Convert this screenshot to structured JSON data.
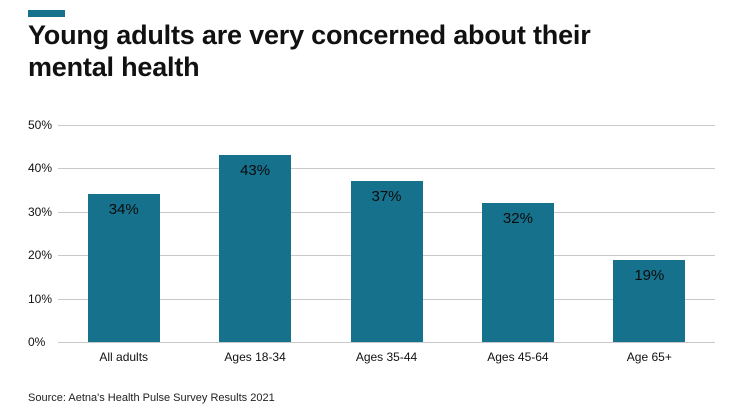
{
  "header": {
    "title": "Young adults are very concerned about their mental health"
  },
  "footer": {
    "source": "Source: Aetna's Health Pulse Survey Results 2021"
  },
  "colors": {
    "bar": "#15718c",
    "accent": "#15718c",
    "gridline": "#c9c9c9"
  },
  "chart_data": {
    "type": "bar",
    "title": "Young adults are very concerned about their mental health",
    "categories": [
      "All adults",
      "Ages 18-34",
      "Ages 35-44",
      "Ages 45-64",
      "Age 65+"
    ],
    "values": [
      34,
      43,
      37,
      32,
      19
    ],
    "value_labels": [
      "34%",
      "43%",
      "37%",
      "32%",
      "19%"
    ],
    "xlabel": "",
    "ylabel": "",
    "ylim": [
      0,
      50
    ],
    "yticks": [
      "0%",
      "10%",
      "20%",
      "30%",
      "40%",
      "50%"
    ],
    "grid": true,
    "legend": false,
    "legend_position": "none"
  }
}
